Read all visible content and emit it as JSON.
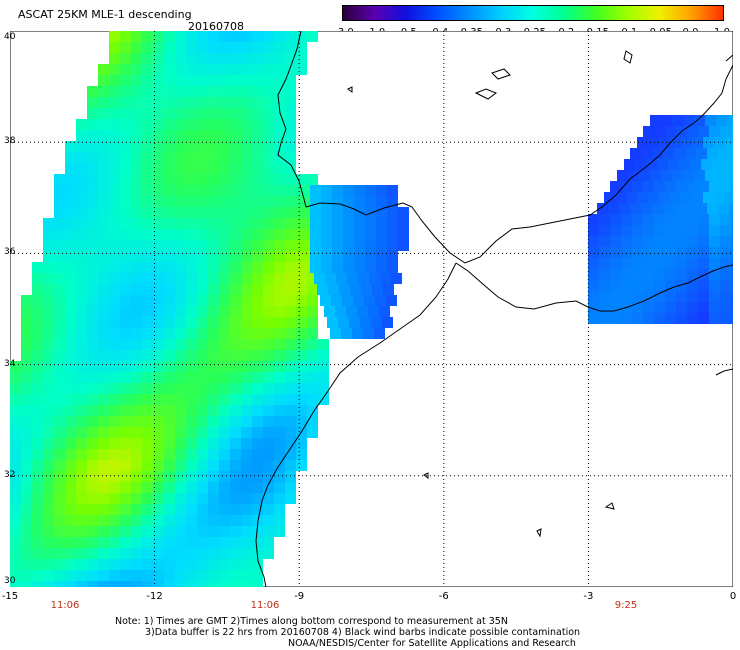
{
  "header": {
    "title": "ASCAT 25KM MLE-1 descending",
    "date": "20160708"
  },
  "colorbar": {
    "labels": [
      "-3.0",
      "-1.0",
      "-0.5",
      "-0.4",
      "-0.35",
      "-0.3",
      "-0.25",
      "-0.2",
      "-0.15",
      "-0.1",
      "-0.05",
      "0.0",
      "1.0"
    ],
    "colors": [
      "#2a003a",
      "#5a00b0",
      "#1010e0",
      "#0050ff",
      "#0090ff",
      "#00d0ff",
      "#00ffe0",
      "#00ff90",
      "#40ff20",
      "#a0ff00",
      "#f0f000",
      "#ffa000",
      "#ff3000"
    ]
  },
  "axes": {
    "x_ticks": [
      "-15",
      "-12",
      "-9",
      "-6",
      "-3",
      "0"
    ],
    "y_ticks": [
      "40",
      "38",
      "36",
      "34",
      "32",
      "30"
    ],
    "x_range": [
      -15,
      0
    ],
    "y_range": [
      30,
      40
    ]
  },
  "pass_times": [
    "11:06",
    "11:06",
    "9:25"
  ],
  "footer": {
    "note1": "Note: 1) Times are GMT 2)Times along bottom correspond to measurement at 35N",
    "note2": "3)Data buffer is 22 hrs from 20160708 4) Black wind barbs indicate possible contamination",
    "credit": "NOAA/NESDIS/Center for Satellite Applications and Research"
  }
}
